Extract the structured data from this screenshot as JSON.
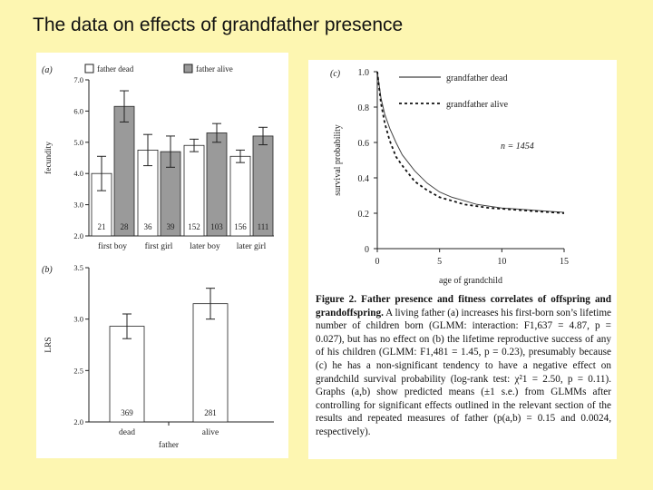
{
  "slide": {
    "title": "The data on effects of grandfather presence"
  },
  "legend": {
    "dead": "father dead",
    "alive": "father alive"
  },
  "colors": {
    "dead": "#ffffff",
    "alive": "#9a9a9a",
    "axis": "#222222"
  },
  "chart_data": [
    {
      "panel": "(a)",
      "type": "bar",
      "ylabel": "fecundity",
      "ylim": [
        2.0,
        7.0
      ],
      "yticks": [
        "2.0",
        "3.0",
        "4.0",
        "5.0",
        "6.0",
        "7.0"
      ],
      "categories": [
        "first boy",
        "first girl",
        "later boy",
        "later girl"
      ],
      "series": [
        {
          "name": "father dead",
          "values": [
            4.0,
            4.75,
            4.9,
            4.55
          ],
          "errors": [
            0.55,
            0.5,
            0.2,
            0.2
          ],
          "n": [
            "21",
            "36",
            "152",
            "156"
          ]
        },
        {
          "name": "father alive",
          "values": [
            6.15,
            4.7,
            5.3,
            5.2
          ],
          "errors": [
            0.5,
            0.5,
            0.3,
            0.28
          ],
          "n": [
            "28",
            "39",
            "103",
            "111"
          ]
        }
      ]
    },
    {
      "panel": "(b)",
      "type": "bar",
      "ylabel": "LRS",
      "xlabel": "father",
      "ylim": [
        2.0,
        3.5
      ],
      "yticks": [
        "2.0",
        "2.5",
        "3.0",
        "3.5"
      ],
      "categories": [
        "dead",
        "alive"
      ],
      "values": [
        2.93,
        3.15
      ],
      "errors": [
        0.12,
        0.15
      ],
      "n": [
        "369",
        "281"
      ]
    },
    {
      "panel": "(c)",
      "type": "line",
      "xlabel": "age of grandchild",
      "ylabel": "survival probability",
      "xlim": [
        0,
        15
      ],
      "ylim": [
        0,
        1.0
      ],
      "xticks": [
        "0",
        "5",
        "10",
        "15"
      ],
      "yticks": [
        "0",
        "0.2",
        "0.4",
        "0.6",
        "0.8",
        "1.0"
      ],
      "annotation": "n = 1454",
      "series": [
        {
          "name": "grandfather dead",
          "style": "solid",
          "x": [
            0,
            0.3,
            0.6,
            1,
            1.5,
            2,
            3,
            4,
            5,
            6,
            7,
            8,
            9,
            10,
            11,
            12,
            13,
            14,
            15
          ],
          "y": [
            1.0,
            0.85,
            0.76,
            0.68,
            0.6,
            0.53,
            0.44,
            0.37,
            0.32,
            0.29,
            0.27,
            0.25,
            0.24,
            0.23,
            0.225,
            0.22,
            0.215,
            0.21,
            0.205
          ]
        },
        {
          "name": "grandfather alive",
          "style": "dashed",
          "x": [
            0,
            0.3,
            0.6,
            1,
            1.5,
            2,
            3,
            4,
            5,
            6,
            7,
            8,
            9,
            10,
            11,
            12,
            13,
            14,
            15
          ],
          "y": [
            1.0,
            0.82,
            0.71,
            0.61,
            0.52,
            0.47,
            0.38,
            0.33,
            0.29,
            0.27,
            0.25,
            0.24,
            0.23,
            0.225,
            0.22,
            0.215,
            0.21,
            0.205,
            0.2
          ]
        }
      ]
    }
  ],
  "caption": {
    "label": "Figure 2.",
    "heading": "Father presence and fitness correlates of offspring and grandoffspring.",
    "body": "A living father (a) increases his first-born son’s lifetime number of children born (GLMM: interaction: F1,637 = 4.87, p = 0.027), but has no effect on (b) the lifetime reproductive success of any of his children (GLMM: F1,481 = 1.45, p = 0.23), presumably because (c) he has a non-significant tendency to have a negative effect on grandchild survival probability (log-rank test: χ²1 = 2.50, p = 0.11). Graphs (a,b) show predicted means (±1 s.e.) from GLMMs after controlling for significant effects outlined in the relevant section of the results and repeated measures of father (p(a,b) = 0.15 and 0.0024, respectively)."
  }
}
